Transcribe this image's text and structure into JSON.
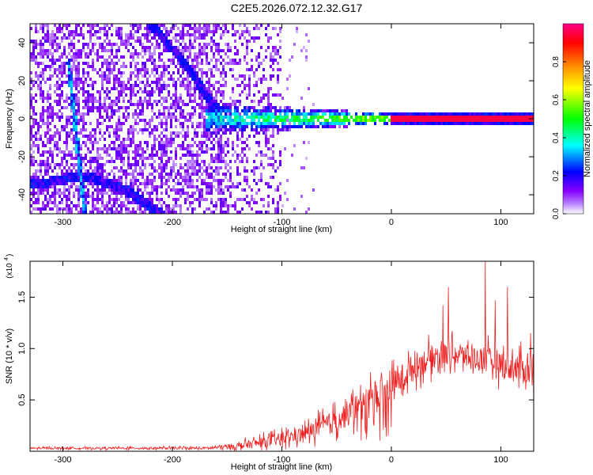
{
  "title": "C2E5.2026.072.12.32.G17",
  "chart_data": [
    {
      "type": "heatmap",
      "xlabel": "Height of straight line (km)",
      "ylabel": "Frequency (Hz)",
      "xlim": [
        -330,
        130
      ],
      "ylim": [
        -50,
        50
      ],
      "x_ticks": [
        -300,
        -200,
        -100,
        0,
        100
      ],
      "x_tick_labels": [
        "-300",
        "-200",
        "-100",
        "0",
        "100"
      ],
      "y_ticks": [
        -40,
        -20,
        0,
        20,
        40
      ],
      "y_tick_labels": [
        "-40",
        "-20",
        "0",
        "20",
        "40"
      ],
      "colorbar": {
        "label": "Normalized spectral amplitude",
        "range": [
          0,
          1
        ],
        "ticks": [
          0.0,
          0.2,
          0.4,
          0.6,
          0.8
        ],
        "tick_labels": [
          "0.0",
          "0.2",
          "0.4",
          "0.6",
          "0.8"
        ],
        "colors": [
          "#ffffff",
          "#8800ff",
          "#0000ff",
          "#00ffff",
          "#00ff00",
          "#ffff00",
          "#ff8800",
          "#ff0000",
          "#ff0088"
        ]
      },
      "features": {
        "carrier_line": {
          "freq": 0,
          "from_height": 0,
          "to_height": 130,
          "amplitude": 0.95
        },
        "noisy_band_center": {
          "freq": 0,
          "from_height": -170,
          "to_height": 0
        },
        "diagonal_trace": {
          "points": [
            [
              -295,
              30
            ],
            [
              -280,
              -50
            ]
          ]
        },
        "upper_curve": {
          "points": [
            [
              -220,
              50
            ],
            [
              -190,
              30
            ],
            [
              -160,
              5
            ]
          ]
        },
        "lower_curve": {
          "points": [
            [
              -330,
              -35
            ],
            [
              -280,
              -30
            ],
            [
              -240,
              -38
            ],
            [
              -210,
              -50
            ]
          ]
        }
      }
    },
    {
      "type": "line",
      "xlabel": "Height of straight line (km)",
      "ylabel": "SNR (10 * v/v)",
      "y_multiplier_label": "(x10",
      "y_multiplier_exp": "4",
      "xlim": [
        -330,
        130
      ],
      "ylim": [
        0,
        1.85
      ],
      "x_ticks": [
        -300,
        -200,
        -100,
        0,
        100
      ],
      "x_tick_labels": [
        "-300",
        "-200",
        "-100",
        "0",
        "100"
      ],
      "y_ticks": [
        0.5,
        1.0,
        1.5
      ],
      "y_tick_labels": [
        "0.5",
        "1.0",
        "1.5"
      ],
      "color": "#ee2222",
      "envelope": {
        "x": [
          -330,
          -250,
          -170,
          -140,
          -110,
          -80,
          -50,
          -30,
          -15,
          0,
          20,
          40,
          55,
          70,
          90,
          110,
          130
        ],
        "y": [
          0.03,
          0.03,
          0.03,
          0.05,
          0.1,
          0.17,
          0.3,
          0.43,
          0.52,
          0.62,
          0.82,
          0.93,
          0.95,
          0.92,
          0.88,
          0.82,
          0.78
        ],
        "noise": [
          0.01,
          0.012,
          0.015,
          0.04,
          0.07,
          0.09,
          0.14,
          0.18,
          0.2,
          0.18,
          0.16,
          0.15,
          0.14,
          0.14,
          0.16,
          0.18,
          0.18
        ]
      },
      "spikes": [
        {
          "x": 86,
          "y": 1.85
        },
        {
          "x": 106,
          "y": 1.6
        },
        {
          "x": 52,
          "y": 1.6
        },
        {
          "x": 95,
          "y": 1.47
        },
        {
          "x": 47,
          "y": 1.42
        },
        {
          "x": 127,
          "y": 1.15
        }
      ]
    }
  ]
}
